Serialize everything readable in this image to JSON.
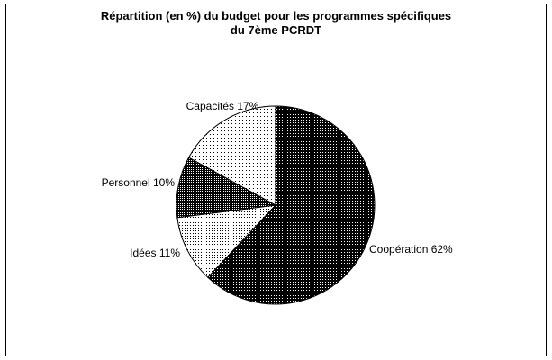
{
  "chart_data": {
    "type": "pie",
    "title_line1": "Répartition (en %) du budget pour les programmes spécifiques",
    "title_line2": "du 7ème PCRDT",
    "slices": [
      {
        "label": "Coopération 62%",
        "name": "Coopération",
        "value": 62,
        "pattern": "dense-dots"
      },
      {
        "label": "Idées 11%",
        "name": "Idées",
        "value": 11,
        "pattern": "sparse-dots"
      },
      {
        "label": "Personnel 10%",
        "name": "Personnel",
        "value": 10,
        "pattern": "medium-dots"
      },
      {
        "label": "Capacités 17%",
        "name": "Capacités",
        "value": 17,
        "pattern": "light-dots"
      }
    ],
    "start_angle_deg": 0,
    "direction": "clockwise",
    "colors": {
      "background": "#ffffff",
      "ink": "#000000"
    }
  }
}
